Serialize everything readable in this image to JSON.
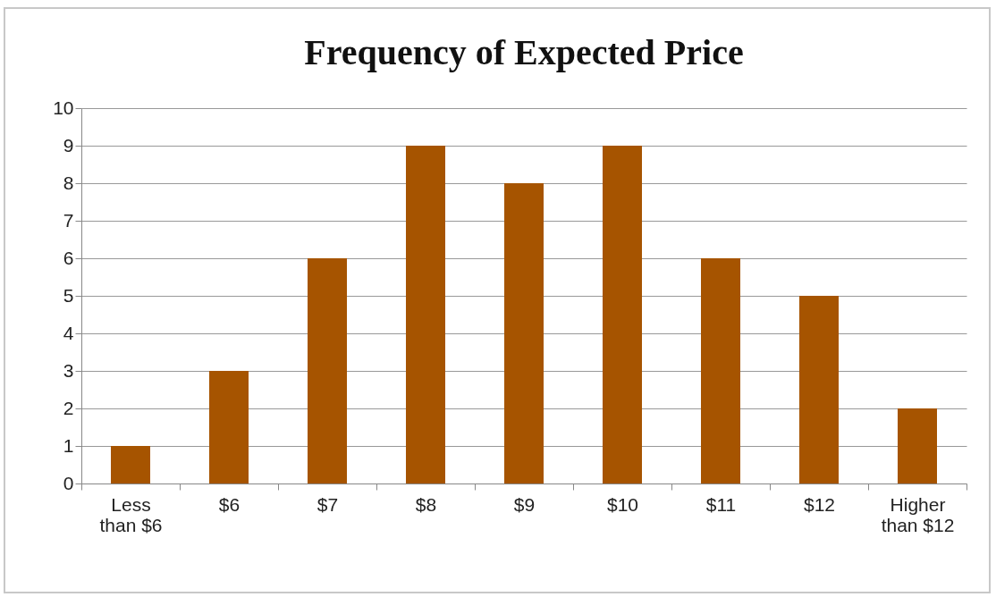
{
  "chart_data": {
    "type": "bar",
    "title": "Frequency of Expected Price",
    "categories": [
      "Less than $6",
      "$6",
      "$7",
      "$8",
      "$9",
      "$10",
      "$11",
      "$12",
      "Higher than $12"
    ],
    "values": [
      1,
      3,
      6,
      9,
      8,
      9,
      6,
      5,
      2
    ],
    "color": "#a65400",
    "ylim": [
      0,
      10
    ],
    "yticks": [
      0,
      1,
      2,
      3,
      4,
      5,
      6,
      7,
      8,
      9,
      10
    ],
    "grid": "y"
  }
}
